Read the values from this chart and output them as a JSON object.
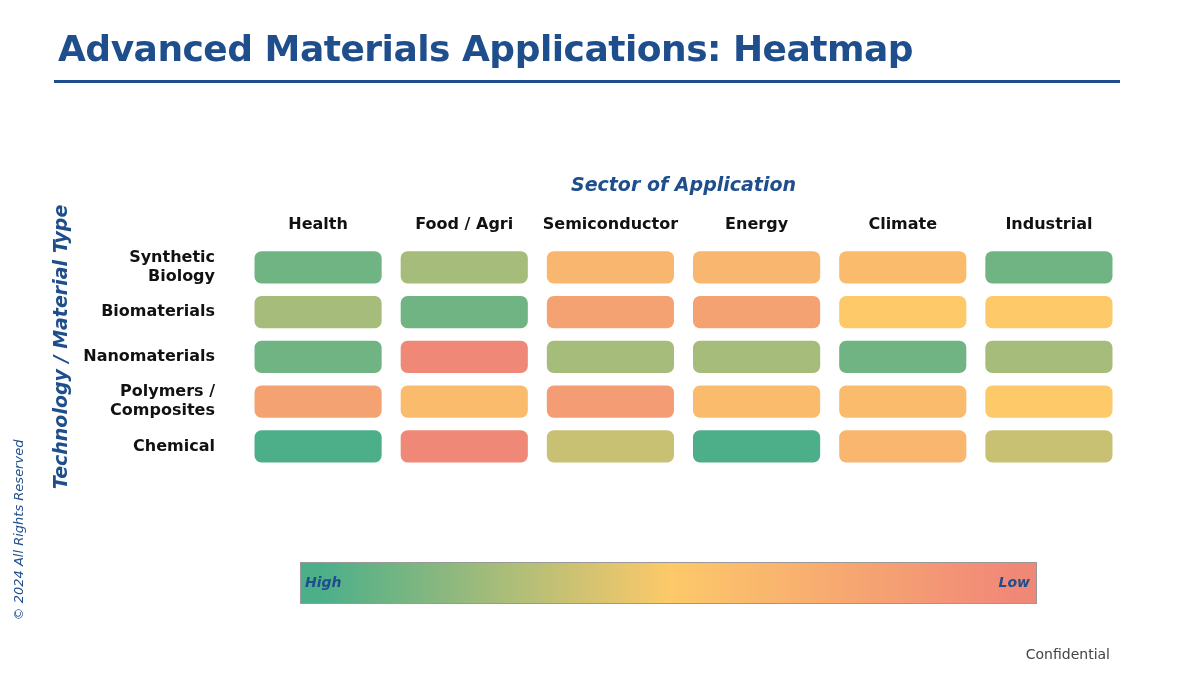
{
  "chart_data": {
    "type": "heatmap",
    "title": "Advanced Materials Applications: Heatmap",
    "xlabel": "Sector of Application",
    "ylabel": "Technology / Material Type",
    "categories": [
      "Health",
      "Food / Agri",
      "Semiconductor",
      "Energy",
      "Climate",
      "Industrial"
    ],
    "y_categories": [
      "Synthetic Biology",
      "Biomaterials",
      "Nanomaterials",
      "Polymers / Composites",
      "Chemical"
    ],
    "cells": [
      [
        0.9,
        0.75,
        0.35,
        0.35,
        0.4,
        0.9
      ],
      [
        0.75,
        0.9,
        0.2,
        0.2,
        0.5,
        0.5
      ],
      [
        0.9,
        0,
        0.75,
        0.75,
        0.9,
        0.75
      ],
      [
        0.2,
        0.4,
        0.15,
        0.4,
        0.4,
        0.5
      ],
      [
        1,
        0,
        0.65,
        1,
        0.35,
        0.65
      ]
    ],
    "clim": [
      1,
      0
    ],
    "cticks": [
      {
        "value": 1,
        "label": "High"
      },
      {
        "value": 0,
        "label": "Low"
      }
    ],
    "annotations": [
      "© 2024 All Rights Reserved",
      "Confidential"
    ]
  }
}
